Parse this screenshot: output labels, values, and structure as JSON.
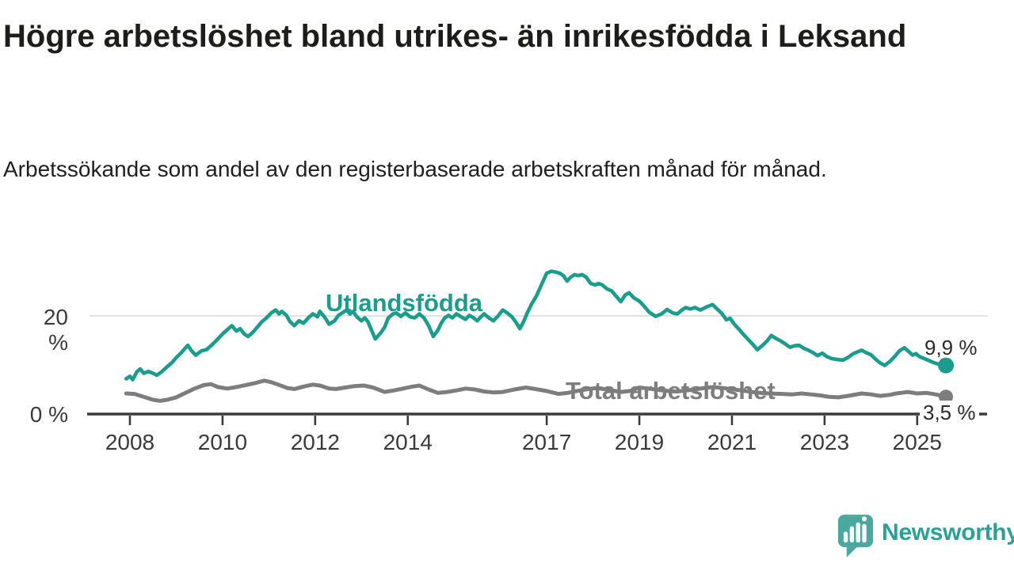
{
  "title": "Högre arbetslöshet bland utrikes- än inrikesfödda i Leksand",
  "subtitle": "Arbetssökande som andel av den registerbaserade arbetskraften månad för månad.",
  "branding": {
    "logo_text": "Newsworthy",
    "logo_icon": "speech-bubble-bar-chart-icon"
  },
  "colors": {
    "background": "#ffffff",
    "title_text": "#1d1d1b",
    "axis_text": "#3a3a3a",
    "axis_line": "#3c3c3c",
    "gridline": "#d9d9d9",
    "annotation_text": "#2b2b2b",
    "brand_teal": "#2ba095",
    "series_foreign_born": "#1b9c8c",
    "series_total": "#7d7d7d"
  },
  "chart_data": {
    "type": "line",
    "title": "Högre arbetslöshet bland utrikes- än inrikesfödda i Leksand",
    "subtitle": "Arbetssökande som andel av den registerbaserade arbetskraften månad för månad.",
    "unit": "%",
    "grid": "single horizontal gridline at 20 %",
    "legend_position": "inline labels on lines",
    "x_axis": {
      "ticks": [
        2008,
        2010,
        2012,
        2014,
        2017,
        2019,
        2021,
        2023,
        2025
      ],
      "range": [
        2007.6,
        2026.3
      ]
    },
    "y_axis": {
      "tick_labels": [
        "0 %",
        "20 %"
      ],
      "tick_values": [
        0,
        20
      ],
      "range": [
        0,
        30.5
      ]
    },
    "series": [
      {
        "name": "Utlandsfödda",
        "color": "#1b9c8c",
        "end_label": "9,9 %",
        "end_value": 9.9,
        "points": [
          [
            2007.92,
            7.2
          ],
          [
            2008.0,
            7.7
          ],
          [
            2008.06,
            7.0
          ],
          [
            2008.15,
            8.6
          ],
          [
            2008.22,
            9.2
          ],
          [
            2008.3,
            8.3
          ],
          [
            2008.4,
            8.7
          ],
          [
            2008.5,
            8.3
          ],
          [
            2008.58,
            7.9
          ],
          [
            2008.67,
            8.5
          ],
          [
            2008.8,
            9.6
          ],
          [
            2008.9,
            10.4
          ],
          [
            2009.0,
            11.5
          ],
          [
            2009.1,
            12.4
          ],
          [
            2009.25,
            14.0
          ],
          [
            2009.33,
            12.9
          ],
          [
            2009.42,
            12.0
          ],
          [
            2009.55,
            12.9
          ],
          [
            2009.65,
            13.1
          ],
          [
            2009.75,
            13.9
          ],
          [
            2009.87,
            15.0
          ],
          [
            2010.0,
            16.3
          ],
          [
            2010.13,
            17.4
          ],
          [
            2010.2,
            18.0
          ],
          [
            2010.3,
            16.9
          ],
          [
            2010.38,
            17.4
          ],
          [
            2010.47,
            16.3
          ],
          [
            2010.55,
            15.8
          ],
          [
            2010.65,
            16.6
          ],
          [
            2010.75,
            17.7
          ],
          [
            2010.85,
            18.8
          ],
          [
            2010.95,
            19.6
          ],
          [
            2011.05,
            20.6
          ],
          [
            2011.15,
            21.2
          ],
          [
            2011.22,
            20.4
          ],
          [
            2011.28,
            20.9
          ],
          [
            2011.38,
            20.1
          ],
          [
            2011.45,
            18.9
          ],
          [
            2011.55,
            18.0
          ],
          [
            2011.65,
            19.0
          ],
          [
            2011.75,
            18.5
          ],
          [
            2011.85,
            19.6
          ],
          [
            2011.95,
            20.4
          ],
          [
            2012.05,
            19.8
          ],
          [
            2012.1,
            20.9
          ],
          [
            2012.2,
            19.8
          ],
          [
            2012.3,
            18.3
          ],
          [
            2012.42,
            19.0
          ],
          [
            2012.5,
            20.1
          ],
          [
            2012.6,
            20.7
          ],
          [
            2012.68,
            21.2
          ],
          [
            2012.75,
            20.4
          ],
          [
            2012.82,
            20.9
          ],
          [
            2012.9,
            19.8
          ],
          [
            2013.0,
            19.0
          ],
          [
            2013.07,
            19.6
          ],
          [
            2013.14,
            18.8
          ],
          [
            2013.22,
            17.0
          ],
          [
            2013.3,
            15.3
          ],
          [
            2013.42,
            16.6
          ],
          [
            2013.5,
            17.7
          ],
          [
            2013.58,
            19.6
          ],
          [
            2013.68,
            20.4
          ],
          [
            2013.75,
            20.6
          ],
          [
            2013.85,
            19.9
          ],
          [
            2013.95,
            20.6
          ],
          [
            2014.05,
            19.8
          ],
          [
            2014.15,
            19.6
          ],
          [
            2014.25,
            20.4
          ],
          [
            2014.35,
            19.6
          ],
          [
            2014.45,
            18.0
          ],
          [
            2014.55,
            15.8
          ],
          [
            2014.65,
            17.1
          ],
          [
            2014.72,
            18.5
          ],
          [
            2014.8,
            19.6
          ],
          [
            2014.88,
            20.1
          ],
          [
            2014.96,
            19.6
          ],
          [
            2015.05,
            20.4
          ],
          [
            2015.15,
            19.8
          ],
          [
            2015.25,
            19.3
          ],
          [
            2015.33,
            20.1
          ],
          [
            2015.42,
            19.6
          ],
          [
            2015.5,
            19.0
          ],
          [
            2015.58,
            19.8
          ],
          [
            2015.65,
            20.4
          ],
          [
            2015.75,
            19.6
          ],
          [
            2015.85,
            19.0
          ],
          [
            2015.95,
            20.0
          ],
          [
            2016.05,
            21.2
          ],
          [
            2016.15,
            20.6
          ],
          [
            2016.25,
            19.8
          ],
          [
            2016.35,
            18.5
          ],
          [
            2016.42,
            17.4
          ],
          [
            2016.5,
            18.8
          ],
          [
            2016.58,
            20.6
          ],
          [
            2016.68,
            22.5
          ],
          [
            2016.78,
            24.1
          ],
          [
            2016.88,
            26.2
          ],
          [
            2017.0,
            28.7
          ],
          [
            2017.1,
            29.1
          ],
          [
            2017.2,
            28.9
          ],
          [
            2017.28,
            28.7
          ],
          [
            2017.36,
            28.2
          ],
          [
            2017.44,
            27.1
          ],
          [
            2017.52,
            27.9
          ],
          [
            2017.6,
            28.4
          ],
          [
            2017.68,
            28.2
          ],
          [
            2017.76,
            28.4
          ],
          [
            2017.85,
            27.9
          ],
          [
            2017.95,
            26.6
          ],
          [
            2018.05,
            26.3
          ],
          [
            2018.12,
            26.6
          ],
          [
            2018.2,
            26.3
          ],
          [
            2018.3,
            25.5
          ],
          [
            2018.4,
            25.1
          ],
          [
            2018.5,
            24.0
          ],
          [
            2018.6,
            22.9
          ],
          [
            2018.7,
            24.3
          ],
          [
            2018.78,
            24.7
          ],
          [
            2018.88,
            23.7
          ],
          [
            2019.0,
            23.0
          ],
          [
            2019.1,
            22.0
          ],
          [
            2019.22,
            20.7
          ],
          [
            2019.35,
            19.9
          ],
          [
            2019.48,
            20.4
          ],
          [
            2019.6,
            21.3
          ],
          [
            2019.72,
            20.6
          ],
          [
            2019.82,
            20.4
          ],
          [
            2019.92,
            21.2
          ],
          [
            2020.0,
            21.7
          ],
          [
            2020.1,
            21.4
          ],
          [
            2020.2,
            21.7
          ],
          [
            2020.32,
            21.2
          ],
          [
            2020.45,
            21.8
          ],
          [
            2020.58,
            22.3
          ],
          [
            2020.68,
            21.4
          ],
          [
            2020.78,
            20.5
          ],
          [
            2020.88,
            19.2
          ],
          [
            2020.96,
            19.5
          ],
          [
            2021.05,
            18.3
          ],
          [
            2021.15,
            17.3
          ],
          [
            2021.25,
            16.2
          ],
          [
            2021.35,
            15.2
          ],
          [
            2021.45,
            14.2
          ],
          [
            2021.55,
            13.1
          ],
          [
            2021.65,
            13.9
          ],
          [
            2021.75,
            14.8
          ],
          [
            2021.85,
            16.0
          ],
          [
            2021.95,
            15.4
          ],
          [
            2022.05,
            14.9
          ],
          [
            2022.15,
            14.3
          ],
          [
            2022.25,
            13.6
          ],
          [
            2022.35,
            13.9
          ],
          [
            2022.45,
            14.0
          ],
          [
            2022.55,
            13.4
          ],
          [
            2022.65,
            13.0
          ],
          [
            2022.75,
            12.5
          ],
          [
            2022.85,
            11.9
          ],
          [
            2022.95,
            12.4
          ],
          [
            2023.05,
            11.7
          ],
          [
            2023.15,
            11.3
          ],
          [
            2023.28,
            11.1
          ],
          [
            2023.4,
            11.0
          ],
          [
            2023.5,
            11.5
          ],
          [
            2023.62,
            12.3
          ],
          [
            2023.72,
            12.7
          ],
          [
            2023.8,
            13.0
          ],
          [
            2023.9,
            12.5
          ],
          [
            2024.0,
            12.1
          ],
          [
            2024.1,
            11.2
          ],
          [
            2024.2,
            10.4
          ],
          [
            2024.3,
            9.9
          ],
          [
            2024.42,
            10.8
          ],
          [
            2024.52,
            11.8
          ],
          [
            2024.62,
            12.9
          ],
          [
            2024.72,
            13.5
          ],
          [
            2024.82,
            12.7
          ],
          [
            2024.9,
            12.0
          ],
          [
            2024.97,
            12.3
          ],
          [
            2025.05,
            11.7
          ],
          [
            2025.15,
            11.3
          ],
          [
            2025.25,
            10.9
          ],
          [
            2025.35,
            10.5
          ],
          [
            2025.45,
            10.2
          ],
          [
            2025.62,
            9.9
          ]
        ]
      },
      {
        "name": "Total arbetslöshet",
        "color": "#7d7d7d",
        "end_label": "3,5 %",
        "end_value": 3.5,
        "points": [
          [
            2007.92,
            4.2
          ],
          [
            2008.1,
            4.1
          ],
          [
            2008.3,
            3.5
          ],
          [
            2008.5,
            2.9
          ],
          [
            2008.65,
            2.7
          ],
          [
            2008.8,
            2.9
          ],
          [
            2009.0,
            3.4
          ],
          [
            2009.2,
            4.3
          ],
          [
            2009.4,
            5.2
          ],
          [
            2009.6,
            5.9
          ],
          [
            2009.75,
            6.1
          ],
          [
            2009.9,
            5.5
          ],
          [
            2010.1,
            5.2
          ],
          [
            2010.3,
            5.5
          ],
          [
            2010.5,
            5.9
          ],
          [
            2010.7,
            6.3
          ],
          [
            2010.9,
            6.8
          ],
          [
            2011.05,
            6.5
          ],
          [
            2011.2,
            6.0
          ],
          [
            2011.4,
            5.3
          ],
          [
            2011.55,
            5.1
          ],
          [
            2011.75,
            5.6
          ],
          [
            2011.95,
            6.0
          ],
          [
            2012.1,
            5.8
          ],
          [
            2012.3,
            5.2
          ],
          [
            2012.45,
            5.1
          ],
          [
            2012.65,
            5.4
          ],
          [
            2012.85,
            5.7
          ],
          [
            2013.05,
            5.8
          ],
          [
            2013.25,
            5.4
          ],
          [
            2013.5,
            4.5
          ],
          [
            2013.7,
            4.8
          ],
          [
            2013.9,
            5.2
          ],
          [
            2014.1,
            5.6
          ],
          [
            2014.25,
            5.8
          ],
          [
            2014.45,
            5.0
          ],
          [
            2014.65,
            4.3
          ],
          [
            2014.85,
            4.5
          ],
          [
            2015.05,
            4.8
          ],
          [
            2015.25,
            5.2
          ],
          [
            2015.45,
            5.0
          ],
          [
            2015.65,
            4.6
          ],
          [
            2015.85,
            4.4
          ],
          [
            2016.05,
            4.5
          ],
          [
            2016.3,
            5.0
          ],
          [
            2016.55,
            5.4
          ],
          [
            2016.75,
            5.1
          ],
          [
            2017.0,
            4.7
          ],
          [
            2017.25,
            4.1
          ],
          [
            2017.45,
            4.3
          ],
          [
            2017.65,
            4.7
          ],
          [
            2017.9,
            5.1
          ],
          [
            2018.1,
            5.3
          ],
          [
            2018.35,
            4.9
          ],
          [
            2018.6,
            4.5
          ],
          [
            2018.8,
            4.7
          ],
          [
            2019.0,
            5.4
          ],
          [
            2019.2,
            5.2
          ],
          [
            2019.5,
            4.8
          ],
          [
            2019.8,
            4.6
          ],
          [
            2020.1,
            4.9
          ],
          [
            2020.4,
            5.3
          ],
          [
            2020.6,
            5.5
          ],
          [
            2020.9,
            5.2
          ],
          [
            2021.2,
            4.8
          ],
          [
            2021.5,
            4.4
          ],
          [
            2021.8,
            4.2
          ],
          [
            2022.1,
            4.1
          ],
          [
            2022.3,
            4.0
          ],
          [
            2022.5,
            4.2
          ],
          [
            2022.7,
            4.0
          ],
          [
            2022.9,
            3.8
          ],
          [
            2023.1,
            3.5
          ],
          [
            2023.3,
            3.4
          ],
          [
            2023.5,
            3.7
          ],
          [
            2023.8,
            4.2
          ],
          [
            2024.0,
            4.0
          ],
          [
            2024.2,
            3.7
          ],
          [
            2024.4,
            3.9
          ],
          [
            2024.55,
            4.2
          ],
          [
            2024.8,
            4.5
          ],
          [
            2025.0,
            4.2
          ],
          [
            2025.2,
            4.3
          ],
          [
            2025.4,
            4.0
          ],
          [
            2025.62,
            3.5
          ]
        ]
      }
    ]
  }
}
